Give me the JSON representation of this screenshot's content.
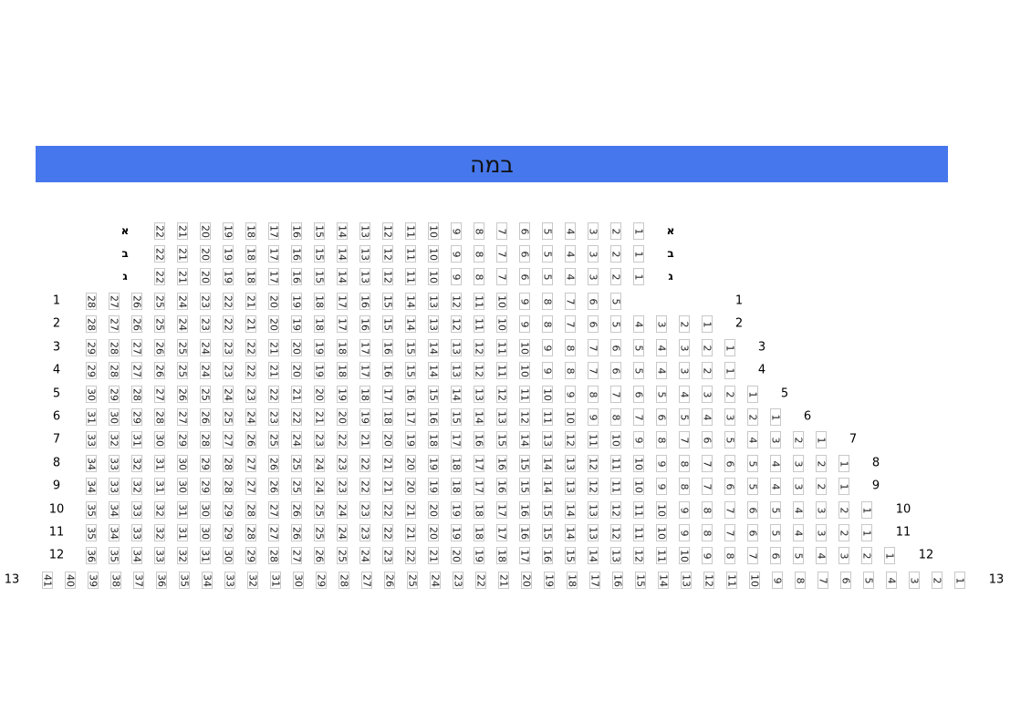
{
  "stage": {
    "label": "במה",
    "color": "#4677ec"
  },
  "rows": [
    {
      "label": "א",
      "from": 22,
      "to": 1
    },
    {
      "label": "ב",
      "from": 22,
      "to": 1
    },
    {
      "label": "ג",
      "from": 22,
      "to": 1
    },
    {
      "label": "1",
      "from": 28,
      "to": 5
    },
    {
      "label": "2",
      "from": 28,
      "to": 1
    },
    {
      "label": "3",
      "from": 29,
      "to": 1
    },
    {
      "label": "4",
      "from": 29,
      "to": 1
    },
    {
      "label": "5",
      "from": 30,
      "to": 1
    },
    {
      "label": "6",
      "from": 31,
      "to": 1
    },
    {
      "label": "7",
      "from": 33,
      "to": 1
    },
    {
      "label": "8",
      "from": 34,
      "to": 1
    },
    {
      "label": "9",
      "from": 34,
      "to": 1
    },
    {
      "label": "10",
      "from": 35,
      "to": 1
    },
    {
      "label": "11",
      "from": 35,
      "to": 1
    },
    {
      "label": "12",
      "from": 36,
      "to": 1
    },
    {
      "label": "13",
      "from": 41,
      "to": 1
    }
  ]
}
